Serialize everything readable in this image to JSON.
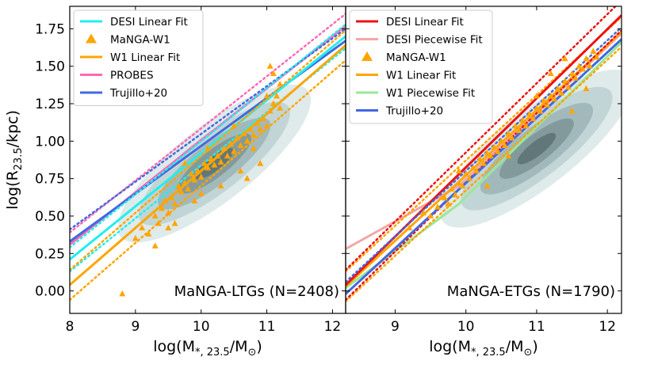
{
  "chart_data": [
    {
      "type": "scatter",
      "panel": "left",
      "annotation": "MaNGA-LTGs (N=2408)",
      "xlabel": "log(M*, 23.5/M⊙)",
      "ylabel": "log(R23.5/kpc)",
      "xlim": [
        8.0,
        12.2
      ],
      "ylim": [
        -0.15,
        1.9
      ],
      "xticks": [
        "8",
        "9",
        "10",
        "11",
        "12"
      ],
      "yticks": [
        "0.00",
        "0.25",
        "0.50",
        "0.75",
        "1.00",
        "1.25",
        "1.50",
        "1.75"
      ],
      "legend_position": "top-left",
      "legend": [
        {
          "label": "DESI Linear Fit",
          "color": "#22eef0",
          "marker": "line"
        },
        {
          "label": "MaNGA-W1",
          "color": "#ffa500",
          "marker": "triangle"
        },
        {
          "label": "W1 Linear Fit",
          "color": "#ffa500",
          "marker": "line"
        },
        {
          "label": "PROBES",
          "color": "#ff69b4",
          "marker": "line"
        },
        {
          "label": "Trujillo+20",
          "color": "#4169e1",
          "marker": "line"
        }
      ],
      "lines": [
        {
          "name": "PROBES",
          "color": "#ff69b4",
          "x": [
            8.0,
            12.2
          ],
          "y": [
            0.31,
            1.77
          ],
          "dotted_offset": 0.0
        },
        {
          "name": "Trujillo+20",
          "color": "#4169e1",
          "x": [
            8.0,
            12.2
          ],
          "y": [
            0.33,
            1.67
          ],
          "dotted_offset": 0.0
        },
        {
          "name": "DESI Linear Fit",
          "color": "#22eef0",
          "x": [
            8.0,
            12.2
          ],
          "y": [
            0.21,
            1.7
          ],
          "dotted_offset": -0.08
        },
        {
          "name": "W1 Linear Fit",
          "color": "#ffa500",
          "x": [
            8.0,
            12.2
          ],
          "y": [
            0.04,
            1.64
          ],
          "dotted_offset": -0.1
        }
      ],
      "density_center": [
        10.2,
        0.85
      ],
      "points": [
        [
          8.8,
          -0.02
        ],
        [
          9.0,
          0.35
        ],
        [
          9.1,
          0.42
        ],
        [
          9.2,
          0.38
        ],
        [
          9.3,
          0.5
        ],
        [
          9.35,
          0.45
        ],
        [
          9.4,
          0.55
        ],
        [
          9.45,
          0.6
        ],
        [
          9.5,
          0.52
        ],
        [
          9.55,
          0.62
        ],
        [
          9.6,
          0.58
        ],
        [
          9.65,
          0.7
        ],
        [
          9.7,
          0.66
        ],
        [
          9.75,
          0.72
        ],
        [
          9.8,
          0.68
        ],
        [
          9.85,
          0.78
        ],
        [
          9.9,
          0.74
        ],
        [
          9.95,
          0.8
        ],
        [
          10.0,
          0.76
        ],
        [
          10.05,
          0.85
        ],
        [
          10.1,
          0.82
        ],
        [
          10.15,
          0.88
        ],
        [
          10.2,
          0.84
        ],
        [
          10.25,
          0.9
        ],
        [
          10.3,
          0.86
        ],
        [
          10.35,
          0.95
        ],
        [
          10.4,
          0.9
        ],
        [
          10.45,
          0.98
        ],
        [
          10.5,
          0.93
        ],
        [
          10.55,
          1.02
        ],
        [
          10.6,
          0.97
        ],
        [
          10.65,
          1.05
        ],
        [
          10.7,
          1.0
        ],
        [
          10.75,
          1.08
        ],
        [
          10.8,
          1.04
        ],
        [
          10.85,
          1.12
        ],
        [
          10.9,
          1.08
        ],
        [
          10.95,
          1.15
        ],
        [
          11.0,
          1.1
        ],
        [
          11.05,
          1.2
        ],
        [
          11.1,
          1.25
        ],
        [
          11.15,
          1.3
        ],
        [
          11.2,
          1.38
        ],
        [
          11.1,
          1.45
        ],
        [
          10.9,
          0.85
        ],
        [
          10.6,
          0.8
        ],
        [
          9.6,
          0.45
        ],
        [
          9.9,
          0.6
        ],
        [
          10.3,
          0.7
        ],
        [
          10.8,
          0.95
        ],
        [
          11.0,
          1.3
        ],
        [
          11.2,
          1.22
        ],
        [
          9.3,
          0.3
        ],
        [
          9.75,
          0.85
        ],
        [
          10.1,
          0.95
        ],
        [
          10.5,
          1.1
        ],
        [
          11.05,
          1.5
        ],
        [
          10.7,
          0.75
        ],
        [
          9.5,
          0.42
        ],
        [
          10.0,
          0.65
        ]
      ]
    },
    {
      "type": "scatter",
      "panel": "right",
      "annotation": "MaNGA-ETGs (N=1790)",
      "xlabel": "log(M*, 23.5/M⊙)",
      "ylabel": "",
      "xlim": [
        8.3,
        12.2
      ],
      "ylim": [
        -0.15,
        1.9
      ],
      "xticks": [
        "9",
        "10",
        "11",
        "12"
      ],
      "legend_position": "top-left",
      "legend": [
        {
          "label": "DESI Linear Fit",
          "color": "#ee1111",
          "marker": "line"
        },
        {
          "label": "DESI Piecewise Fit",
          "color": "#f4a6a6",
          "marker": "line"
        },
        {
          "label": "MaNGA-W1",
          "color": "#ffa500",
          "marker": "triangle"
        },
        {
          "label": "W1 Linear Fit",
          "color": "#ffa500",
          "marker": "line"
        },
        {
          "label": "W1 Piecewise Fit",
          "color": "#98e898",
          "marker": "line"
        },
        {
          "label": "Trujillo+20",
          "color": "#4169e1",
          "marker": "line"
        }
      ],
      "lines": [
        {
          "name": "DESI Piecewise Fit",
          "color": "#f4a6a6",
          "x": [
            8.3,
            9.9,
            12.2
          ],
          "y": [
            0.28,
            0.7,
            1.72
          ],
          "dotted_offset": null
        },
        {
          "name": "W1 Piecewise Fit",
          "color": "#98e898",
          "x": [
            8.3,
            9.9,
            12.2
          ],
          "y": [
            0.02,
            0.58,
            1.66
          ],
          "dotted_offset": null
        },
        {
          "name": "W1 Linear Fit",
          "color": "#ffa500",
          "x": [
            8.3,
            12.2
          ],
          "y": [
            0.03,
            1.73
          ],
          "dotted_offset": -0.1
        },
        {
          "name": "DESI Linear Fit",
          "color": "#ee1111",
          "x": [
            8.3,
            12.2
          ],
          "y": [
            0.04,
            1.84
          ],
          "dotted_offset": 0.1
        },
        {
          "name": "Trujillo+20",
          "color": "#4169e1",
          "x": [
            8.3,
            12.2
          ],
          "y": [
            -0.02,
            1.68
          ],
          "dotted_offset": 0.0
        }
      ],
      "density_center": [
        11.0,
        0.95
      ],
      "points": [
        [
          9.2,
          0.42
        ],
        [
          9.4,
          0.52
        ],
        [
          9.5,
          0.5
        ],
        [
          9.6,
          0.56
        ],
        [
          9.7,
          0.62
        ],
        [
          9.75,
          0.58
        ],
        [
          9.8,
          0.68
        ],
        [
          9.85,
          0.64
        ],
        [
          9.9,
          0.72
        ],
        [
          9.95,
          0.7
        ],
        [
          10.0,
          0.78
        ],
        [
          10.05,
          0.75
        ],
        [
          10.1,
          0.82
        ],
        [
          10.15,
          0.8
        ],
        [
          10.2,
          0.88
        ],
        [
          10.25,
          0.85
        ],
        [
          10.3,
          0.92
        ],
        [
          10.35,
          0.9
        ],
        [
          10.4,
          0.96
        ],
        [
          10.45,
          0.93
        ],
        [
          10.5,
          1.0
        ],
        [
          10.55,
          0.97
        ],
        [
          10.6,
          1.05
        ],
        [
          10.65,
          1.02
        ],
        [
          10.7,
          1.1
        ],
        [
          10.75,
          1.07
        ],
        [
          10.8,
          1.14
        ],
        [
          10.85,
          1.1
        ],
        [
          10.9,
          1.18
        ],
        [
          10.95,
          1.15
        ],
        [
          11.0,
          1.22
        ],
        [
          11.05,
          1.2
        ],
        [
          11.1,
          1.27
        ],
        [
          11.15,
          1.24
        ],
        [
          11.2,
          1.3
        ],
        [
          11.25,
          1.28
        ],
        [
          11.3,
          1.35
        ],
        [
          11.35,
          1.32
        ],
        [
          11.4,
          1.4
        ],
        [
          11.45,
          1.36
        ],
        [
          11.5,
          1.45
        ],
        [
          11.55,
          1.42
        ],
        [
          11.6,
          1.5
        ],
        [
          11.65,
          1.48
        ],
        [
          11.7,
          1.55
        ],
        [
          11.75,
          1.5
        ],
        [
          11.8,
          1.6
        ],
        [
          11.85,
          1.56
        ],
        [
          11.5,
          1.2
        ],
        [
          11.2,
          1.45
        ],
        [
          10.3,
          0.7
        ],
        [
          9.9,
          0.8
        ],
        [
          11.7,
          1.35
        ],
        [
          11.0,
          1.3
        ],
        [
          10.6,
          0.9
        ],
        [
          11.4,
          1.55
        ]
      ]
    }
  ]
}
